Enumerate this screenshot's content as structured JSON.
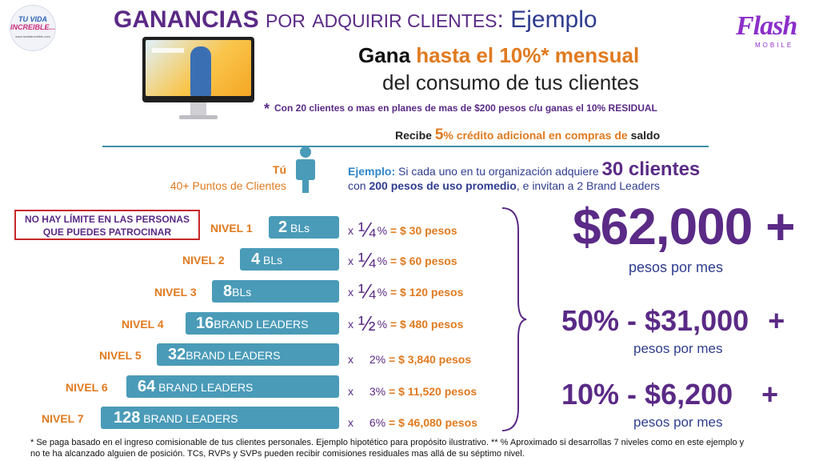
{
  "logo_left": {
    "line1": "TU VIDA",
    "line2": "INCREIBLE...",
    "line3": "www.tuvidaincreible.com"
  },
  "title": {
    "bold": "GANANCIAS",
    "por": "POR",
    "adquirir": "ADQUIRIR CLIENTES",
    "colon": ":",
    "ejemplo": " Ejemplo"
  },
  "brand": {
    "word": "Flash",
    "sub": "MOBILE"
  },
  "headline": {
    "gana": "Gana",
    "hasta": "hasta el 10%* mensual",
    "line2": "del consumo de tus clientes"
  },
  "condition": {
    "asterisk": "*",
    "text": "Con 20 clientes o mas en planes de mas de $200 pesos c/u ganas el 10% RESIDUAL"
  },
  "recibe": {
    "pre": "Recibe",
    "five": "5",
    "pct": "% crédito adicional en compras de",
    "post": "saldo"
  },
  "you": {
    "label": "Tú",
    "points": "40+ Puntos de Clientes"
  },
  "example": {
    "label": "Ejemplo:",
    "text1": " Si cada uno en tu organización  adquiere ",
    "big": "30 clientes",
    "text2a": "con ",
    "bold2": "200 pesos de uso promedio",
    "text2b": ", e invitan a 2 Brand Leaders"
  },
  "no_limit": {
    "line1": "NO HAY LÍMITE EN LAS PERSONAS",
    "line2": "QUE PUEDES PATROCINAR"
  },
  "levels": [
    {
      "name": "NIVEL 1",
      "count": "2",
      "unit": " BLs",
      "x": "x",
      "fraction": "¼",
      "percent": "%",
      "amount": "= $ 30 pesos"
    },
    {
      "name": "NIVEL 2",
      "count": "4",
      "unit": " BLs",
      "x": "x",
      "fraction": "¼",
      "percent": "%",
      "amount": "= $ 60 pesos"
    },
    {
      "name": "NIVEL 3",
      "count": "8",
      "unit": "BLs",
      "x": "x",
      "fraction": "¼",
      "percent": "%",
      "amount": "= $ 120 pesos"
    },
    {
      "name": "NIVEL 4",
      "count": "16",
      "unit": "BRAND LEADERS",
      "x": "x",
      "fraction": "½",
      "percent": "%",
      "amount": "= $ 480 pesos"
    },
    {
      "name": "NIVEL 5",
      "count": "32",
      "unit": "BRAND LEADERS",
      "x": "x",
      "fraction": "",
      "percent": "2%",
      "amount": "= $ 3,840 pesos"
    },
    {
      "name": "NIVEL 6",
      "count": "64",
      "unit": " BRAND LEADERS",
      "x": "x",
      "fraction": "",
      "percent": "3%",
      "amount": "= $ 11,520 pesos"
    },
    {
      "name": "NIVEL 7",
      "count": "128",
      "unit": " BRAND LEADERS",
      "x": "x",
      "fraction": "",
      "percent": "6%",
      "amount": "= $ 46,080 pesos"
    }
  ],
  "totals": {
    "main": "$62,000 +",
    "main_sub": "pesos por mes",
    "half": "50% - $31,000",
    "half_plus": "+",
    "half_sub": "pesos por mes",
    "tenth": "10% - $6,200",
    "tenth_plus": "+",
    "tenth_sub": "pesos por mes"
  },
  "footnote": {
    "line1": "* Se paga basado en el ingreso comisionable de tus clientes personales. Ejemplo hipotético para propósito ilustrativo. **  % Aproximado si desarrollas 7 niveles como en este ejemplo y",
    "line2": "no te ha alcanzado alguien de posición.        TCs, RVPs y SVPs pueden recibir comisiones residuales mas allá de su séptimo nivel."
  },
  "colors": {
    "purple": "#5a2a86",
    "orange": "#e07a1f",
    "teal": "#4a9bb8",
    "navy": "#2f3c8f",
    "red_border": "#c62828"
  }
}
